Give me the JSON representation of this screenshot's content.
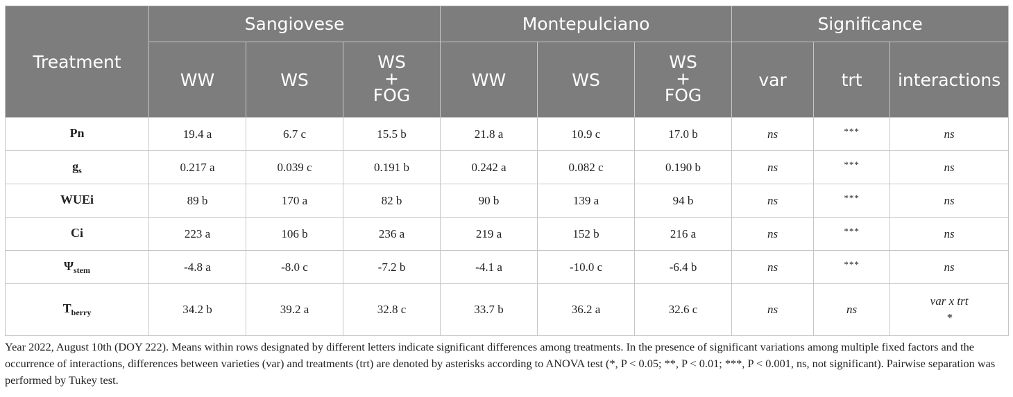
{
  "header": {
    "treatment": "Treatment",
    "groups": [
      "Sangiovese",
      "Montepulciano",
      "Significance"
    ],
    "sub": {
      "ww": "WW",
      "ws": "WS",
      "wsfog_1": "WS",
      "wsfog_2": "+",
      "wsfog_3": "FOG",
      "var": "var",
      "trt": "trt",
      "interactions": "interactions"
    }
  },
  "rows": [
    {
      "name": "Pn",
      "sub": "",
      "cells": [
        "19.4 a",
        "6.7 c",
        "15.5 b",
        "21.8 a",
        "10.9 c",
        "17.0 b"
      ],
      "var": "ns",
      "trt": "***",
      "int": "ns"
    },
    {
      "name": "g",
      "sub": "s",
      "cells": [
        "0.217 a",
        "0.039 c",
        "0.191 b",
        "0.242 a",
        "0.082 c",
        "0.190 b"
      ],
      "var": "ns",
      "trt": "***",
      "int": "ns"
    },
    {
      "name": "WUEi",
      "sub": "",
      "cells": [
        "89 b",
        "170 a",
        "82 b",
        "90 b",
        "139 a",
        "94 b"
      ],
      "var": "ns",
      "trt": "***",
      "int": "ns"
    },
    {
      "name": "Ci",
      "sub": "",
      "cells": [
        "223 a",
        "106 b",
        "236 a",
        "219 a",
        "152 b",
        "216 a"
      ],
      "var": "ns",
      "trt": "***",
      "int": "ns"
    },
    {
      "name": "Ψ",
      "sub": "stem",
      "cells": [
        "-4.8 a",
        "-8.0 c",
        "-7.2 b",
        "-4.1 a",
        "-10.0 c",
        "-6.4 b"
      ],
      "var": "ns",
      "trt": "***",
      "int": "ns"
    },
    {
      "name": "T",
      "sub": "berry",
      "cells": [
        "34.2 b",
        "39.2 a",
        "32.8 c",
        "33.7 b",
        "36.2 a",
        "32.6 c"
      ],
      "var": "ns",
      "trt": "ns",
      "int": "var x trt",
      "int2": "*"
    }
  ],
  "footnote": "Year 2022, August 10th (DOY 222). Means within rows designated by different letters indicate significant differences among treatments. In the presence of significant variations among multiple fixed factors and the occurrence of interactions, differences between varieties (var) and treatments (trt) are denoted by asterisks according to ANOVA test (*, P < 0.05; **, P < 0.01; ***, P < 0.001, ns, not significant). Pairwise separation was performed by Tukey test."
}
